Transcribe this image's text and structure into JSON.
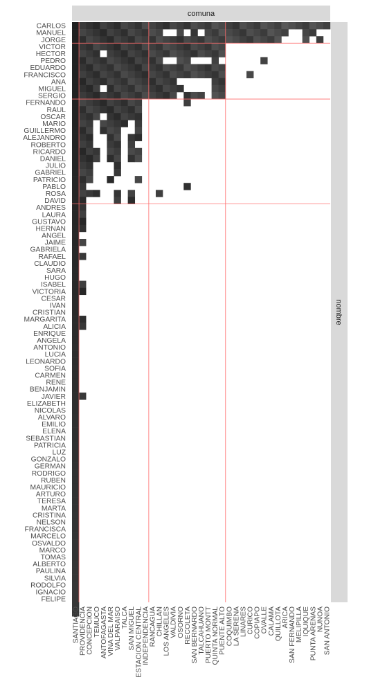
{
  "chart_data": {
    "type": "heatmap",
    "title": "",
    "xlabel": "",
    "ylabel": "",
    "facet_top_label": "comuna",
    "facet_right_label": "nombre",
    "colors": {
      "panel_bg": "#ffffff",
      "strip_bg": "#d9d9d9",
      "divider": "#ff6b6b",
      "cell_min": "#707070",
      "cell_max": "#101010",
      "label": "#4d4d4d"
    },
    "x_categories": [
      "SANTIAGO",
      "PROVIDENCIA",
      "CONCEPCION",
      "TEMUCO",
      "ANTOFAGASTA",
      "VINA DEL MAR",
      "VALPARAISO",
      "TALCA",
      "SAN MIGUEL",
      "ESTACION CENTRAL",
      "INDEPENDENCIA",
      "RANCAGUA",
      "CHILLAN",
      "LOS ANGELES",
      "VALDIVIA",
      "OSORNO",
      "RECOLETA",
      "SAN BERNARDO",
      "TALCAHUANO",
      "PUERTO MONTT",
      "QUINTA NORMAL",
      "PUENTE ALTO",
      "COQUIMBO",
      "LA SERENA",
      "LINARES",
      "CURICO",
      "COPIAPO",
      "OVALLE",
      "CALAMA",
      "QUILLOTA",
      "ARICA",
      "SAN FERNANDO",
      "MELIPILLA",
      "IQUIQUE",
      "PUNTA ARENAS",
      "NUNOA",
      "SAN ANTONIO"
    ],
    "y_categories": [
      "CARLOS",
      "MANUEL",
      "JORGE",
      "VICTOR",
      "HECTOR",
      "PEDRO",
      "EDUARDO",
      "FRANCISCO",
      "ANA",
      "MIGUEL",
      "SERGIO",
      "FERNANDO",
      "RAUL",
      "OSCAR",
      "MARIO",
      "GUILLERMO",
      "ALEJANDRO",
      "ROBERTO",
      "RICARDO",
      "DANIEL",
      "JULIO",
      "GABRIEL",
      "PATRICIO",
      "PABLO",
      "ROSA",
      "DAVID",
      "ANDRES",
      "LAURA",
      "GUSTAVO",
      "HERNAN",
      "ANGEL",
      "JAIME",
      "GABRIELA",
      "RAFAEL",
      "CLAUDIO",
      "SARA",
      "HUGO",
      "ISABEL",
      "VICTORIA",
      "CESAR",
      "IVAN",
      "CRISTIAN",
      "MARGARITA",
      "ALICIA",
      "ENRIQUE",
      "ANGELA",
      "ANTONIO",
      "LUCIA",
      "LEONARDO",
      "SOFIA",
      "CARMEN",
      "RENE",
      "BENJAMIN",
      "JAVIER",
      "ELIZABETH",
      "NICOLAS",
      "ALVARO",
      "EMILIO",
      "ELENA",
      "SEBASTIAN",
      "PATRICIA",
      "LUZ",
      "GONZALO",
      "GERMAN",
      "RODRIGO",
      "RUBEN",
      "MAURICIO",
      "ARTURO",
      "TERESA",
      "MARTA",
      "CRISTINA",
      "NELSON",
      "FRANCISCA",
      "MARCELO",
      "OSVALDO",
      "MARCO",
      "TOMAS",
      "ALBERTO",
      "PAULINA",
      "SILVIA",
      "RODOLFO",
      "IGNACIO",
      "FELIPE"
    ],
    "x_group_boundaries_after_index": [
      0,
      10,
      21
    ],
    "y_group_boundaries_after_index": [
      2,
      10,
      25
    ],
    "filled_cells": [
      [
        0,
        1,
        2,
        3,
        4,
        5,
        6,
        7,
        8,
        9,
        10,
        11,
        12,
        13,
        14,
        15,
        16,
        17,
        18,
        19,
        20,
        21,
        22,
        23,
        24,
        25,
        26,
        27,
        28,
        29,
        30,
        31,
        32,
        33,
        34,
        35,
        36
      ],
      [
        0,
        1,
        2,
        3,
        4,
        5,
        6,
        7,
        8,
        9,
        10,
        11,
        12,
        15,
        17,
        19,
        20,
        21,
        22,
        23,
        24,
        25,
        26,
        27,
        28,
        29,
        30,
        33,
        34
      ],
      [
        0,
        1,
        2,
        3,
        4,
        5,
        6,
        7,
        8,
        9,
        10,
        11,
        12,
        13,
        14,
        15,
        16,
        17,
        18,
        19,
        20,
        21,
        22,
        23,
        24,
        25,
        26,
        27,
        28,
        29,
        33,
        35
      ],
      [
        0,
        1,
        2,
        3,
        4,
        5,
        6,
        7,
        8,
        9,
        10,
        11,
        12,
        13,
        14,
        15,
        16,
        17,
        18,
        19,
        20,
        21
      ],
      [
        0,
        1,
        2,
        3,
        5,
        6,
        7,
        8,
        9,
        10,
        11,
        12,
        13,
        14,
        15,
        16,
        17,
        18,
        19,
        20,
        21
      ],
      [
        0,
        1,
        2,
        3,
        4,
        5,
        6,
        7,
        8,
        9,
        10,
        11,
        12,
        15,
        16,
        20,
        27
      ],
      [
        0,
        1,
        2,
        3,
        4,
        5,
        6,
        7,
        8,
        9,
        10,
        11,
        12,
        13,
        14,
        15,
        16,
        17,
        18,
        19,
        20,
        21
      ],
      [
        0,
        1,
        2,
        3,
        4,
        5,
        6,
        7,
        8,
        9,
        10,
        11,
        12,
        13,
        14,
        15,
        16,
        17,
        18,
        19,
        20,
        21,
        25
      ],
      [
        0,
        1,
        2,
        3,
        4,
        5,
        6,
        7,
        8,
        9,
        10,
        11,
        12,
        13,
        14,
        20,
        21
      ],
      [
        0,
        1,
        2,
        3,
        5,
        6,
        7,
        8,
        9,
        10,
        11,
        12,
        13,
        14,
        15,
        20,
        21
      ],
      [
        0,
        1,
        2,
        3,
        4,
        5,
        6,
        7,
        8,
        9,
        10,
        11,
        12,
        13,
        14,
        16,
        17,
        18,
        20,
        21
      ],
      [
        0,
        1,
        2,
        3,
        4,
        5,
        6,
        7,
        8,
        9,
        16
      ],
      [
        0,
        1,
        2,
        3,
        4,
        5,
        6,
        7,
        8,
        9
      ],
      [
        0,
        1,
        2,
        3,
        5,
        6,
        7,
        8,
        9
      ],
      [
        0,
        1,
        2,
        4,
        5,
        6,
        7,
        9
      ],
      [
        0,
        1,
        2,
        4,
        5,
        6,
        9
      ],
      [
        0,
        1,
        2,
        5,
        6,
        8,
        9
      ],
      [
        0,
        1,
        2,
        5,
        6,
        8
      ],
      [
        0,
        1,
        2,
        3,
        5,
        6,
        8,
        9
      ],
      [
        0,
        1,
        2,
        3,
        5,
        6,
        8,
        9
      ],
      [
        0,
        1,
        2,
        6
      ],
      [
        0,
        1,
        2,
        6
      ],
      [
        0,
        1,
        2,
        5,
        9
      ],
      [
        0,
        1,
        16
      ],
      [
        0,
        1,
        2,
        3,
        6,
        8,
        12
      ],
      [
        0,
        1,
        6,
        8
      ],
      [
        0,
        1
      ],
      [
        0,
        1
      ],
      [
        0,
        1
      ],
      [
        0,
        1
      ],
      [
        0
      ],
      [
        0,
        1
      ],
      [
        0
      ],
      [
        0,
        1
      ],
      [
        0
      ],
      [
        0
      ],
      [
        0
      ],
      [
        0,
        1
      ],
      [
        0,
        1
      ],
      [
        0
      ],
      [
        0
      ],
      [
        0
      ],
      [
        0,
        1
      ],
      [
        0,
        1
      ],
      [
        0
      ],
      [
        0
      ],
      [
        0
      ],
      [
        0
      ],
      [
        0
      ],
      [
        0
      ],
      [
        0
      ],
      [
        0
      ],
      [
        0
      ],
      [
        0,
        1
      ],
      [
        0
      ],
      [
        0
      ],
      [
        0
      ],
      [
        0
      ],
      [
        0
      ],
      [
        0
      ],
      [
        0
      ],
      [
        0
      ],
      [
        0
      ],
      [
        0
      ],
      [
        0
      ],
      [
        0
      ],
      [
        0
      ],
      [
        0
      ],
      [
        0
      ],
      [
        0
      ],
      [
        0
      ],
      [
        0
      ],
      [
        0
      ],
      [
        0
      ],
      [
        0
      ],
      [
        0
      ],
      [
        0
      ],
      [
        0
      ],
      [
        0
      ],
      [
        0
      ],
      [
        0
      ],
      [
        0
      ],
      [
        0
      ],
      [
        0
      ],
      [
        0
      ]
    ],
    "grid": false,
    "legend": "none"
  }
}
